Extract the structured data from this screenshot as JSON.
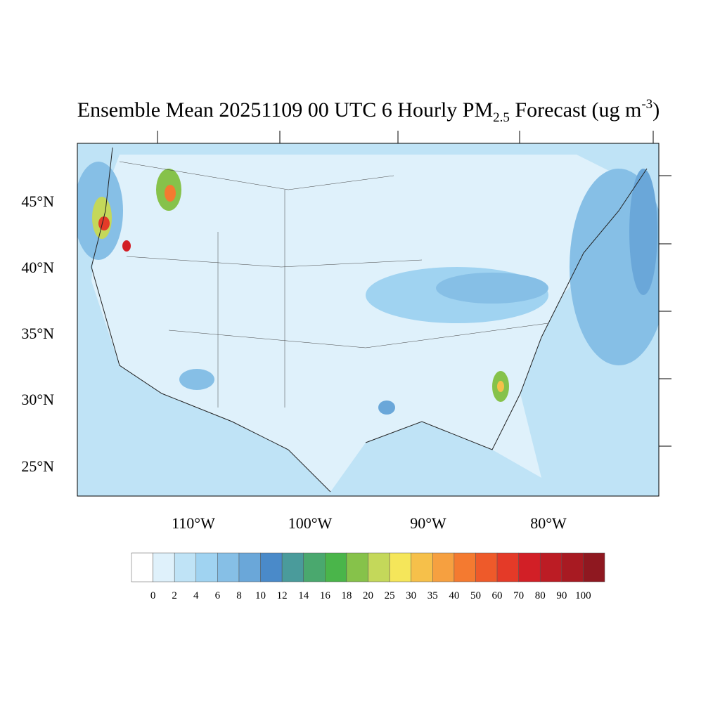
{
  "header": {
    "title_main": "Ensemble Mean 20251109 00 UTC 6 Hourly PM",
    "title_sub": "2.5",
    "title_mid": " Forecast (ug m",
    "title_sup": "-3",
    "title_end": ")"
  },
  "map": {
    "lat_labels": [
      "45°N",
      "40°N",
      "35°N",
      "30°N",
      "25°N"
    ],
    "lon_labels": [
      "110°W",
      "100°W",
      "90°W",
      "80°W"
    ]
  },
  "colorbar": {
    "levels": [
      0,
      2,
      4,
      6,
      8,
      10,
      12,
      14,
      16,
      18,
      20,
      25,
      30,
      35,
      40,
      50,
      60,
      70,
      80,
      90,
      100
    ],
    "colors": [
      "#ffffff",
      "#dff1fb",
      "#bfe3f6",
      "#a0d3f1",
      "#86bfe6",
      "#6aa7d9",
      "#4a8ac9",
      "#4a9b9b",
      "#4aa86e",
      "#4ab54a",
      "#86c24a",
      "#c4d85a",
      "#f5e65a",
      "#f6c04a",
      "#f6a040",
      "#f47a30",
      "#ee5a2a",
      "#e43a28",
      "#d21f26",
      "#bc1c24",
      "#a81a22",
      "#8f1820"
    ]
  }
}
